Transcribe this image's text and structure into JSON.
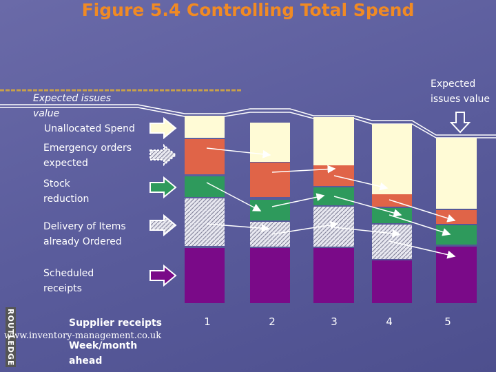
{
  "title": "Figure 5.4 Controlling Total Spend",
  "labels": {
    "expected_issues": "Expected issues value",
    "unallocated": "Unallocated Spend",
    "emergency": "Emergency orders expected",
    "stock": "Stock reduction",
    "delivery": "Delivery of Items already Ordered",
    "scheduled": "Scheduled receipts",
    "expected_issues_right": "Expected issues value"
  },
  "axis": {
    "label": "Supplier receipts",
    "caption": "Week/month ahead",
    "ticks": [
      "1",
      "2",
      "3",
      "4",
      "5"
    ]
  },
  "logo": "ROUTLEDGE",
  "url": "www.inventory-management.co.uk"
}
